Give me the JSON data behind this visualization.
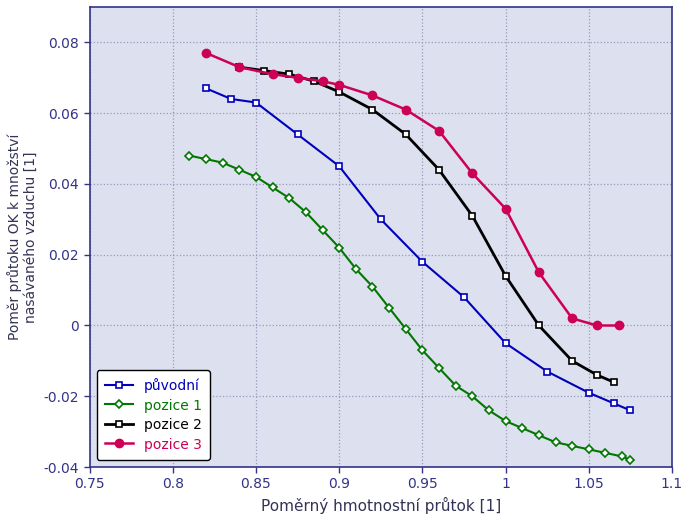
{
  "title": "",
  "xlabel": "Poměrný hmotnostní průtok [1]",
  "ylabel": "Poměr průtoku OK k množství\nnasávaného vzduchu [1]",
  "xlim": [
    0.75,
    1.1
  ],
  "ylim": [
    -0.04,
    0.09
  ],
  "xticks": [
    0.75,
    0.8,
    0.85,
    0.9,
    0.95,
    1.0,
    1.05,
    1.1
  ],
  "yticks": [
    -0.04,
    -0.02,
    0.0,
    0.02,
    0.04,
    0.06,
    0.08
  ],
  "xtick_labels": [
    "0.75",
    "0.8",
    "0.85",
    "0.9",
    "0.95",
    "1",
    "1.05",
    "1.1"
  ],
  "ytick_labels": [
    "-0.04",
    "-0.02",
    "0",
    "0.02",
    "0.04",
    "0.06",
    "0.08"
  ],
  "series": [
    {
      "label": "původní",
      "color": "#0000bb",
      "marker": "s",
      "markersize": 5,
      "markerfacecolor": "white",
      "markeredgecolor": "#0000bb",
      "markeredgewidth": 1.2,
      "linewidth": 1.5,
      "x": [
        0.82,
        0.835,
        0.85,
        0.875,
        0.9,
        0.925,
        0.95,
        0.975,
        1.0,
        1.025,
        1.05,
        1.065,
        1.075
      ],
      "y": [
        0.067,
        0.064,
        0.063,
        0.054,
        0.045,
        0.03,
        0.018,
        0.008,
        -0.005,
        -0.013,
        -0.019,
        -0.022,
        -0.024
      ]
    },
    {
      "label": "pozice 1",
      "color": "#007700",
      "marker": "D",
      "markersize": 4,
      "markerfacecolor": "white",
      "markeredgecolor": "#007700",
      "markeredgewidth": 1.2,
      "linewidth": 1.5,
      "x": [
        0.81,
        0.82,
        0.83,
        0.84,
        0.85,
        0.86,
        0.87,
        0.88,
        0.89,
        0.9,
        0.91,
        0.92,
        0.93,
        0.94,
        0.95,
        0.96,
        0.97,
        0.98,
        0.99,
        1.0,
        1.01,
        1.02,
        1.03,
        1.04,
        1.05,
        1.06,
        1.07,
        1.075
      ],
      "y": [
        0.048,
        0.047,
        0.046,
        0.044,
        0.042,
        0.039,
        0.036,
        0.032,
        0.027,
        0.022,
        0.016,
        0.011,
        0.005,
        -0.001,
        -0.007,
        -0.012,
        -0.017,
        -0.02,
        -0.024,
        -0.027,
        -0.029,
        -0.031,
        -0.033,
        -0.034,
        -0.035,
        -0.036,
        -0.037,
        -0.038
      ]
    },
    {
      "label": "pozice 2",
      "color": "#000000",
      "marker": "s",
      "markersize": 5,
      "markerfacecolor": "white",
      "markeredgecolor": "#000000",
      "markeredgewidth": 1.2,
      "linewidth": 2.0,
      "x": [
        0.84,
        0.855,
        0.87,
        0.885,
        0.9,
        0.92,
        0.94,
        0.96,
        0.98,
        1.0,
        1.02,
        1.04,
        1.055,
        1.065
      ],
      "y": [
        0.073,
        0.072,
        0.071,
        0.069,
        0.066,
        0.061,
        0.054,
        0.044,
        0.031,
        0.014,
        0.0,
        -0.01,
        -0.014,
        -0.016
      ]
    },
    {
      "label": "pozice 3",
      "color": "#cc0055",
      "marker": "o",
      "markersize": 6,
      "markerfacecolor": "#cc0055",
      "markeredgecolor": "#cc0055",
      "markeredgewidth": 1.0,
      "linewidth": 1.8,
      "x": [
        0.82,
        0.84,
        0.86,
        0.875,
        0.89,
        0.9,
        0.92,
        0.94,
        0.96,
        0.98,
        1.0,
        1.02,
        1.04,
        1.055,
        1.068
      ],
      "y": [
        0.077,
        0.073,
        0.071,
        0.07,
        0.069,
        0.068,
        0.065,
        0.061,
        0.055,
        0.043,
        0.033,
        0.015,
        0.002,
        0.0,
        0.0
      ]
    }
  ],
  "legend_loc": "lower left",
  "grid_color": "#9999bb",
  "bg_color": "#dde0ee",
  "spine_color": "#333388",
  "tick_color": "#333388",
  "label_color": "#333355",
  "label_fontsize": 11,
  "ylabel_fontsize": 10,
  "tick_fontsize": 10,
  "legend_fontsize": 10
}
